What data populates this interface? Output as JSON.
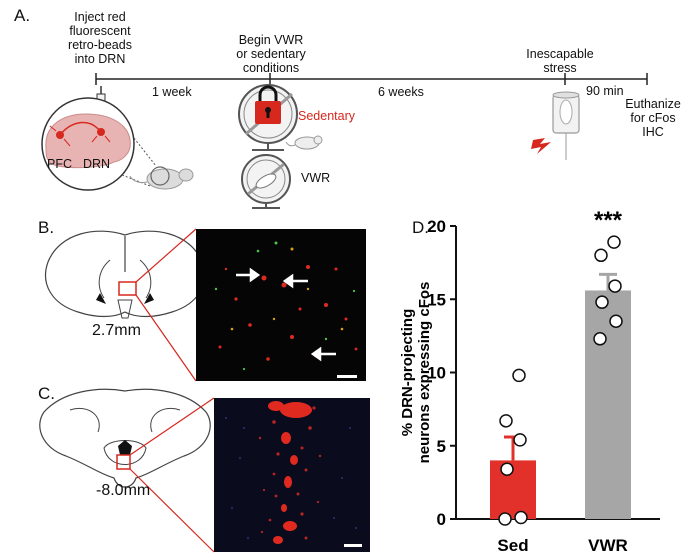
{
  "panel_a": {
    "letter": "A.",
    "steps": {
      "inject": [
        "Inject red",
        "fluorescent",
        "retro-beads",
        "into DRN"
      ],
      "begin": [
        "Begin VWR",
        "or sedentary",
        "conditions"
      ],
      "stress": [
        "Inescapable",
        "stress"
      ],
      "euthanize": [
        "Euthanize",
        "for cFos",
        "IHC"
      ]
    },
    "intervals": {
      "first": "1 week",
      "second": "6 weeks",
      "third": "90 min"
    },
    "brain_labels": {
      "pfc": "PFC",
      "drn": "DRN"
    },
    "conditions": {
      "sedentary": "Sedentary",
      "vwr": "VWR"
    },
    "colors": {
      "red": "#d6281f",
      "brain_pink": "#e8b4b3",
      "gray": "#9a9a9a"
    }
  },
  "panel_b": {
    "letter": "B.",
    "coordinate": "2.7mm"
  },
  "panel_c": {
    "letter": "C.",
    "coordinate": "-8.0mm"
  },
  "panel_d": {
    "letter": "D."
  },
  "chart_data": {
    "type": "bar",
    "categories": [
      "Sed",
      "VWR"
    ],
    "values": [
      4.0,
      15.6
    ],
    "errors": [
      1.6,
      1.1
    ],
    "points": [
      [
        0,
        0.1,
        3.4,
        5.4,
        6.7,
        9.8
      ],
      [
        12.3,
        13.5,
        14.8,
        15.9,
        18.0,
        18.9
      ]
    ],
    "bar_colors": [
      "#e2312b",
      "#a6a6a6"
    ],
    "ylabel": "% DRN-projecting neurons expressing cFos",
    "ylim": [
      0,
      20
    ],
    "yticks": [
      "0",
      "5",
      "10",
      "15",
      "20"
    ],
    "significance": "***"
  }
}
